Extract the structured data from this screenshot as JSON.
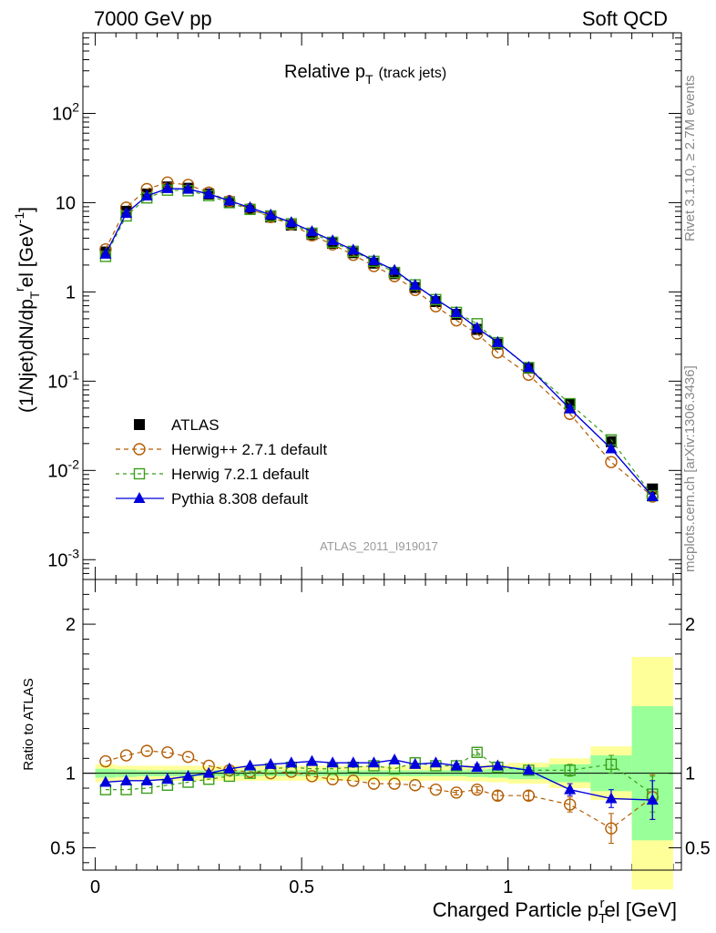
{
  "header": {
    "energy_label": "7000 GeV pp",
    "process_label": "Soft QCD"
  },
  "side_labels": {
    "rivet": "Rivet 3.1.10, ≥ 2.7M events",
    "mcplots": "mcplots.cern.ch [arXiv:1306.3436]"
  },
  "watermark": "ATLAS_2011_I919017",
  "chart_data": [
    {
      "type": "scatter",
      "panel": "main",
      "title": "Relative p_T (track jets)",
      "title_main": "Relative p",
      "title_sub": "T",
      "title_suffix": "(track jets)",
      "ylabel": "(1/Njet)dN/dp_T^rel [GeV^-1]",
      "xlabel": "Charged Particle p_T^rel [GeV]",
      "yscale": "log",
      "xlim": [
        -0.03,
        1.42
      ],
      "ylim": [
        0.0006,
        800
      ],
      "ytick_labels": [
        "10^-3",
        "10^-2",
        "10^-1",
        "1",
        "10",
        "10^2"
      ],
      "legend_position": "middle-left",
      "x": [
        0.025,
        0.075,
        0.125,
        0.175,
        0.225,
        0.275,
        0.325,
        0.375,
        0.425,
        0.475,
        0.525,
        0.575,
        0.625,
        0.675,
        0.725,
        0.775,
        0.825,
        0.875,
        0.925,
        0.975,
        1.05,
        1.15,
        1.25,
        1.35
      ],
      "series": [
        {
          "name": "ATLAS",
          "color": "#000000",
          "marker": "filled-square",
          "values": [
            2.8,
            8.0,
            12.5,
            15.0,
            14.5,
            12.5,
            10.2,
            8.4,
            6.9,
            5.6,
            4.4,
            3.5,
            2.75,
            2.1,
            1.6,
            1.12,
            0.78,
            0.56,
            0.38,
            0.26,
            0.14,
            0.055,
            0.021,
            0.0062
          ]
        },
        {
          "name": "Herwig++ 2.7.1 default",
          "color": "#b35c00",
          "marker": "open-circle",
          "values": [
            3.0,
            8.8,
            14.2,
            16.8,
            15.8,
            13.0,
            10.4,
            8.5,
            6.9,
            5.7,
            4.3,
            3.4,
            2.6,
            1.95,
            1.5,
            1.05,
            0.69,
            0.48,
            0.34,
            0.21,
            0.118,
            0.043,
            0.0124,
            0.0051
          ]
        },
        {
          "name": "Herwig 7.2.1 default",
          "color": "#3a9e1a",
          "marker": "open-square",
          "values": [
            2.5,
            7.1,
            11.3,
            13.8,
            13.6,
            12.0,
            10.0,
            8.4,
            7.1,
            5.8,
            4.55,
            3.6,
            2.85,
            2.2,
            1.65,
            1.2,
            0.82,
            0.59,
            0.44,
            0.27,
            0.142,
            0.056,
            0.022,
            0.0052
          ]
        },
        {
          "name": "Pythia 8.308 default",
          "color": "#0000dd",
          "marker": "filled-triangle",
          "values": [
            2.65,
            7.6,
            11.9,
            14.4,
            14.2,
            12.5,
            10.5,
            8.8,
            7.3,
            6.0,
            4.75,
            3.75,
            2.95,
            2.25,
            1.75,
            1.19,
            0.83,
            0.59,
            0.395,
            0.272,
            0.143,
            0.049,
            0.0175,
            0.0051
          ]
        }
      ]
    },
    {
      "type": "scatter",
      "panel": "ratio",
      "ylabel": "Ratio to ATLAS",
      "xlabel": "Charged Particle p_T^rel [GeV]",
      "xlim": [
        -0.03,
        1.42
      ],
      "ylim": [
        0.35,
        2.3
      ],
      "ytick_labels": [
        "0.5",
        "1",
        "2"
      ],
      "xtick_labels": [
        "0",
        "0.5",
        "1"
      ],
      "bins": [
        0,
        0.05,
        0.1,
        0.15,
        0.2,
        0.25,
        0.3,
        0.35,
        0.4,
        0.45,
        0.5,
        0.55,
        0.6,
        0.65,
        0.7,
        0.75,
        0.8,
        0.85,
        0.9,
        0.95,
        1.0,
        1.1,
        1.2,
        1.3,
        1.4
      ],
      "band_stat": [
        0.03,
        0.025,
        0.02,
        0.02,
        0.02,
        0.02,
        0.02,
        0.02,
        0.02,
        0.02,
        0.02,
        0.02,
        0.02,
        0.02,
        0.02,
        0.02,
        0.02,
        0.02,
        0.025,
        0.03,
        0.04,
        0.06,
        0.12,
        0.45
      ],
      "band_total": [
        0.06,
        0.05,
        0.05,
        0.05,
        0.05,
        0.05,
        0.05,
        0.05,
        0.05,
        0.05,
        0.05,
        0.05,
        0.05,
        0.05,
        0.05,
        0.05,
        0.05,
        0.05,
        0.055,
        0.06,
        0.07,
        0.1,
        0.18,
        0.78
      ],
      "x": [
        0.025,
        0.075,
        0.125,
        0.175,
        0.225,
        0.275,
        0.325,
        0.375,
        0.425,
        0.475,
        0.525,
        0.575,
        0.625,
        0.675,
        0.725,
        0.775,
        0.825,
        0.875,
        0.925,
        0.975,
        1.05,
        1.15,
        1.25,
        1.35
      ],
      "series": [
        {
          "name": "Herwig++ 2.7.1 default",
          "color": "#b35c00",
          "marker": "open-circle",
          "values": [
            1.08,
            1.12,
            1.15,
            1.14,
            1.11,
            1.05,
            1.02,
            1.01,
            1.0,
            1.01,
            0.98,
            0.96,
            0.95,
            0.93,
            0.93,
            0.92,
            0.89,
            0.87,
            0.89,
            0.85,
            0.85,
            0.79,
            0.63,
            0.84
          ],
          "errors": [
            0.01,
            0.01,
            0.01,
            0.01,
            0.01,
            0.01,
            0.01,
            0.01,
            0.01,
            0.01,
            0.01,
            0.01,
            0.01,
            0.01,
            0.01,
            0.01,
            0.01,
            0.015,
            0.02,
            0.03,
            0.03,
            0.05,
            0.1,
            0.15
          ]
        },
        {
          "name": "Herwig 7.2.1 default",
          "color": "#3a9e1a",
          "marker": "open-square",
          "values": [
            0.89,
            0.89,
            0.9,
            0.92,
            0.94,
            0.96,
            0.98,
            1.0,
            1.03,
            1.04,
            1.03,
            1.03,
            1.04,
            1.05,
            1.03,
            1.07,
            1.05,
            1.05,
            1.14,
            1.04,
            1.02,
            1.02,
            1.06,
            0.86
          ],
          "errors": [
            0.01,
            0.01,
            0.01,
            0.01,
            0.01,
            0.01,
            0.01,
            0.01,
            0.01,
            0.01,
            0.01,
            0.01,
            0.01,
            0.01,
            0.01,
            0.01,
            0.01,
            0.015,
            0.02,
            0.02,
            0.02,
            0.04,
            0.06,
            0.12
          ]
        },
        {
          "name": "Pythia 8.308 default",
          "color": "#0000dd",
          "marker": "filled-triangle",
          "values": [
            0.94,
            0.95,
            0.95,
            0.96,
            0.98,
            1.0,
            1.03,
            1.05,
            1.06,
            1.07,
            1.08,
            1.07,
            1.07,
            1.07,
            1.09,
            1.06,
            1.07,
            1.05,
            1.04,
            1.05,
            1.02,
            0.89,
            0.83,
            0.82
          ],
          "errors": [
            0.01,
            0.01,
            0.01,
            0.01,
            0.01,
            0.01,
            0.01,
            0.01,
            0.01,
            0.01,
            0.01,
            0.01,
            0.01,
            0.01,
            0.01,
            0.01,
            0.01,
            0.015,
            0.02,
            0.02,
            0.02,
            0.04,
            0.06,
            0.13
          ]
        }
      ]
    }
  ]
}
